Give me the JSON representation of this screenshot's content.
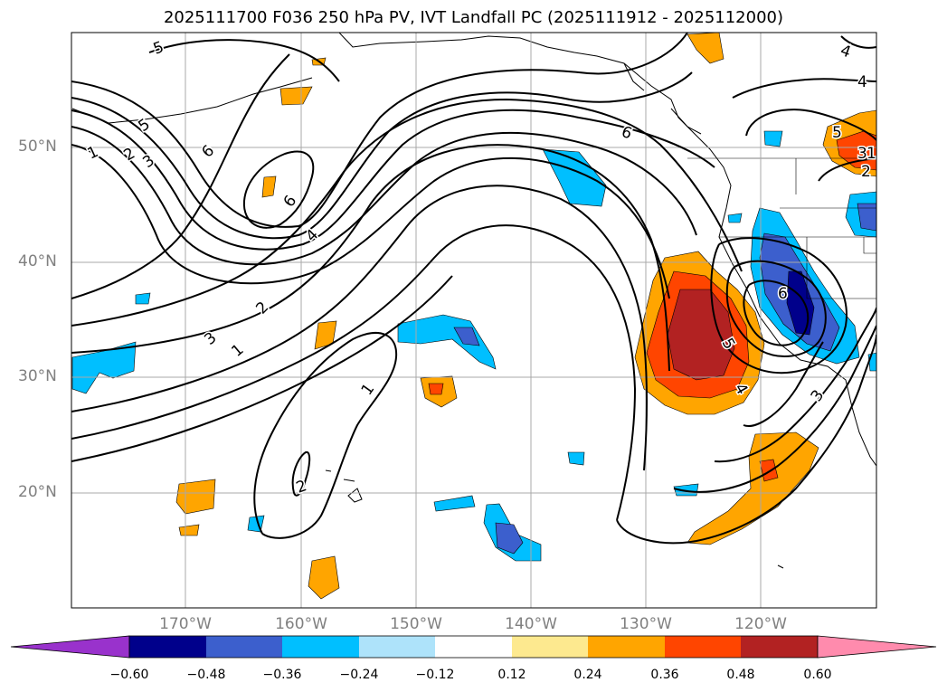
{
  "title": "2025111700 F036 250 hPa PV, IVT Landfall PC (2025111912 - 2025112000)",
  "map": {
    "latitude_labels": [
      "50°N",
      "40°N",
      "30°N",
      "20°N"
    ],
    "longitude_labels": [
      "170°W",
      "160°W",
      "150°W",
      "140°W",
      "130°W",
      "120°W"
    ],
    "pv_contour_labels": [
      "1",
      "2",
      "3",
      "4",
      "5",
      "6"
    ]
  },
  "colorbar": {
    "ticks": [
      "−0.60",
      "−0.48",
      "−0.36",
      "−0.24",
      "−0.12",
      "0.12",
      "0.24",
      "0.36",
      "0.48",
      "0.60"
    ],
    "colors": [
      "#9932cc",
      "#00008b",
      "#3c5fcd",
      "#00bfff",
      "#aee3fa",
      "#ffffff",
      "#fde98f",
      "#ffa500",
      "#ff4500",
      "#b22222",
      "#ff8bad"
    ]
  }
}
